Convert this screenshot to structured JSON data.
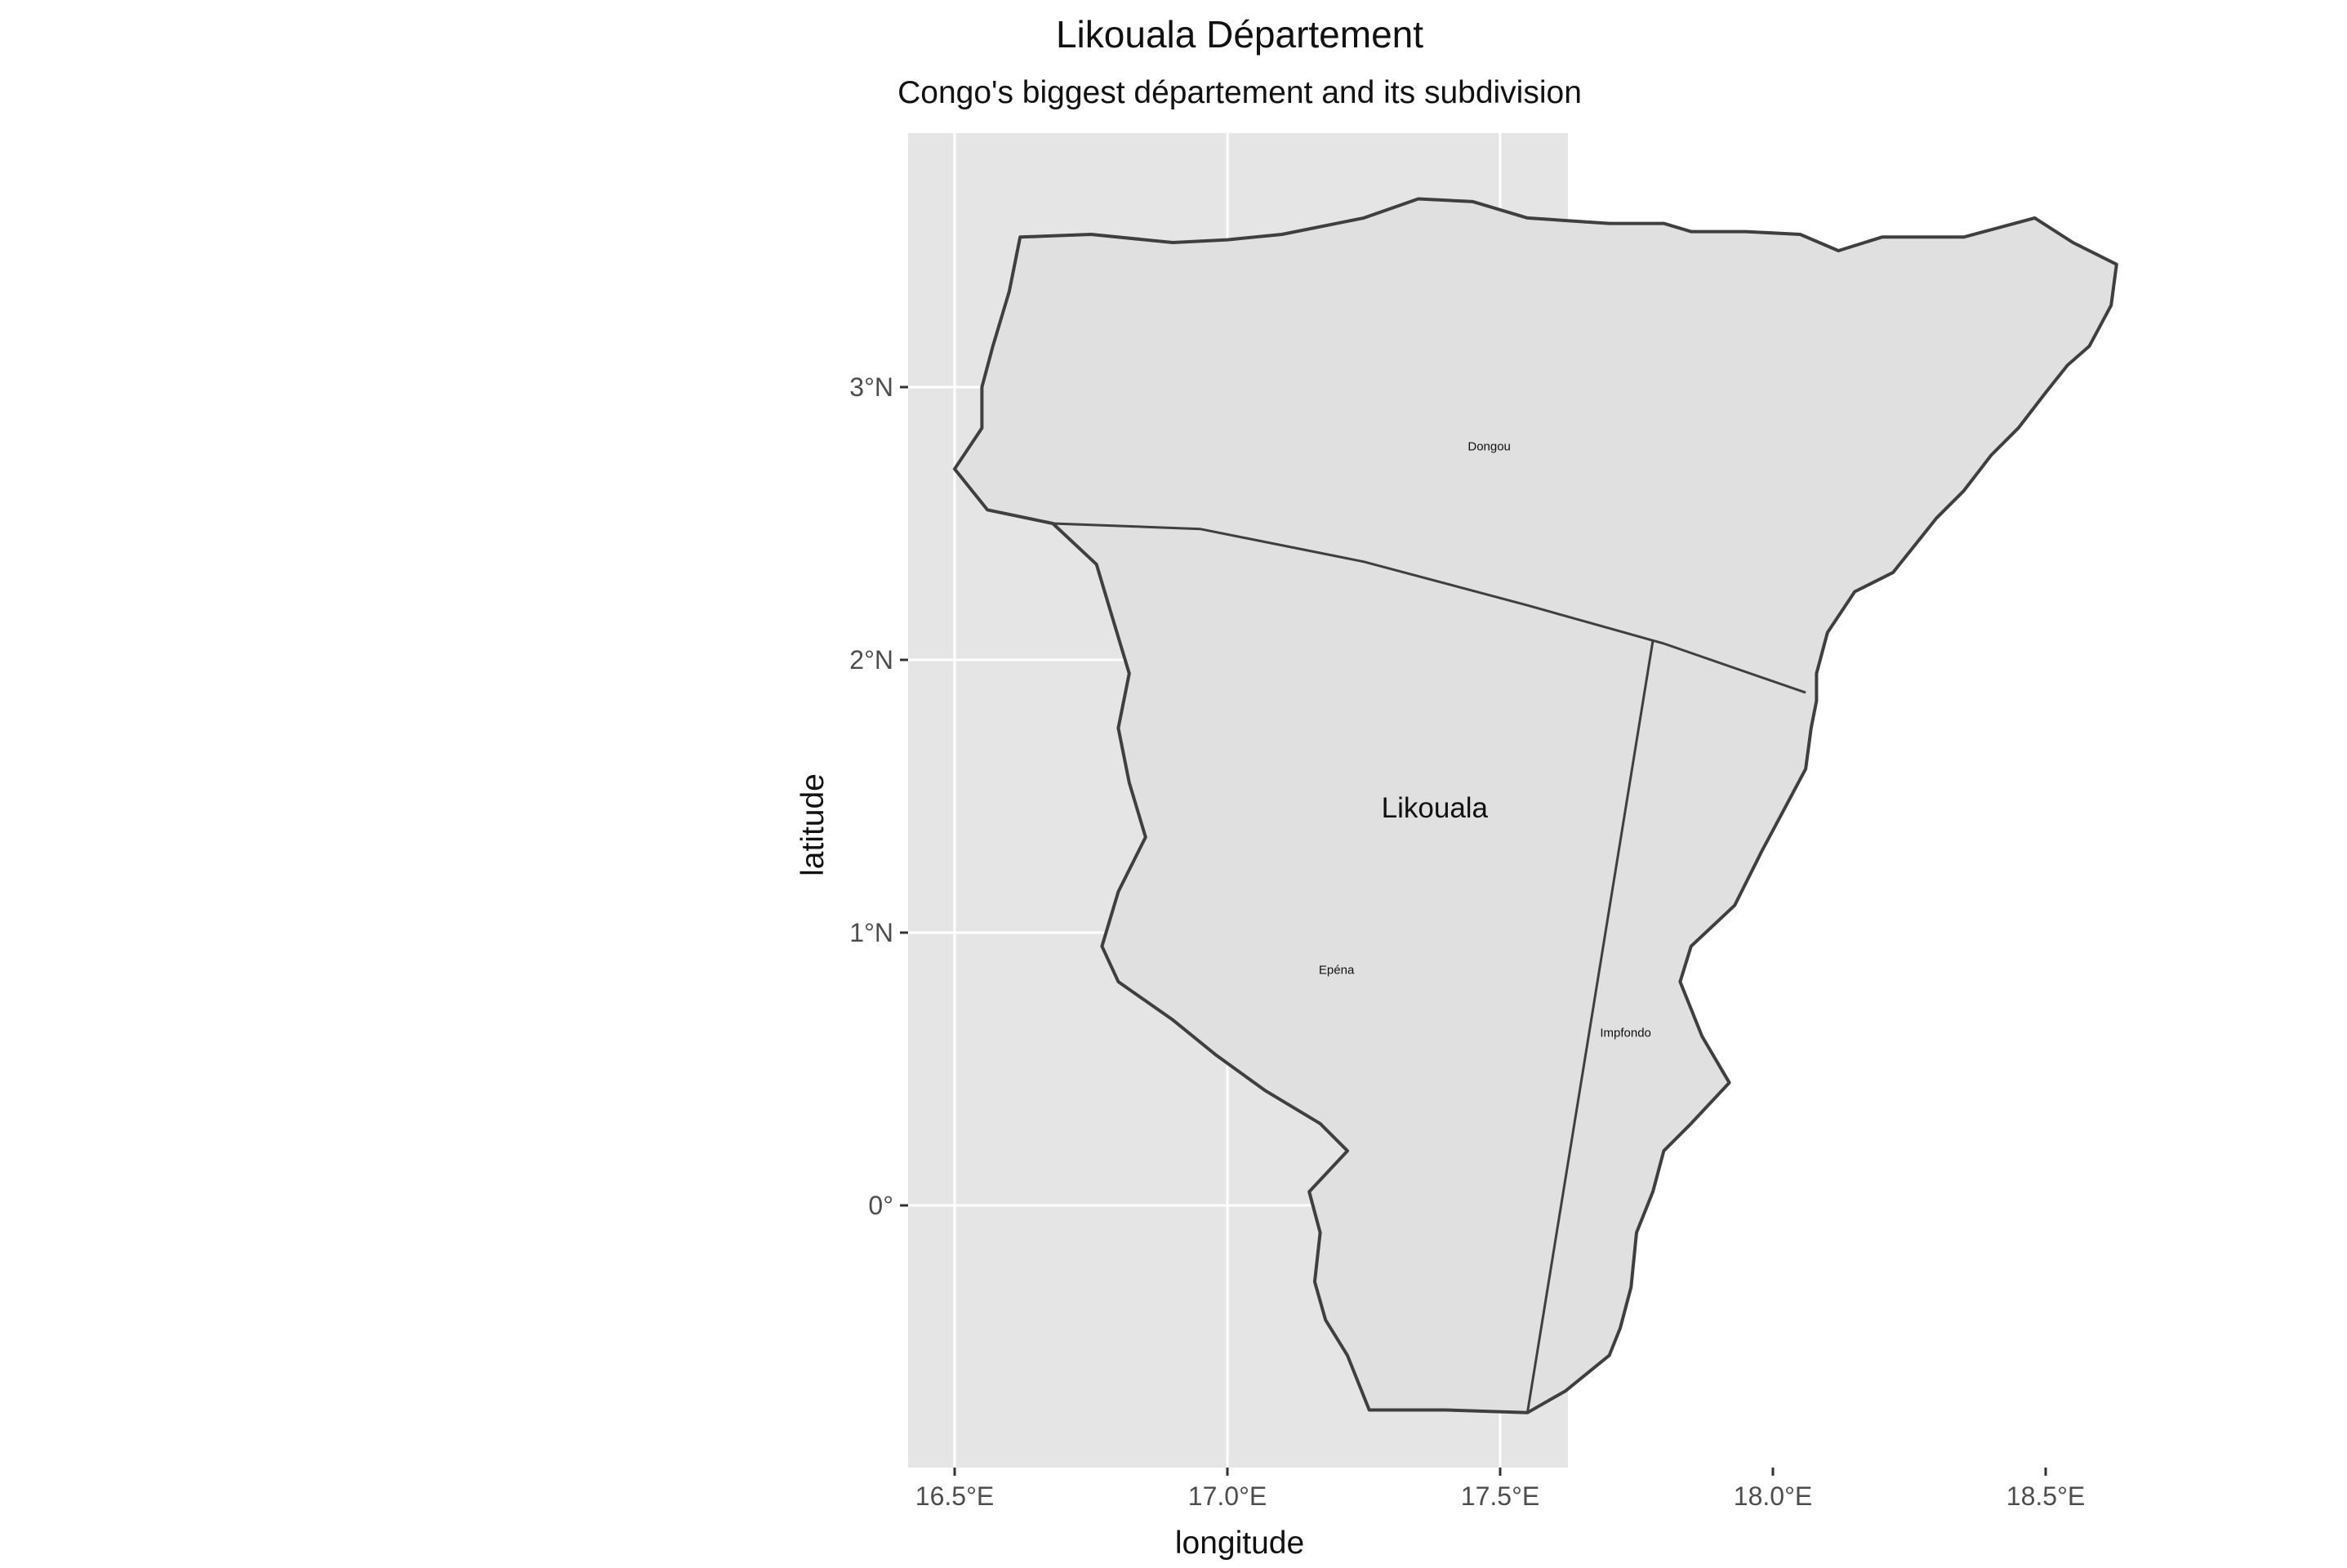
{
  "title": "Likouala Département",
  "subtitle": "Congo's biggest département and its subdivision",
  "axes": {
    "x_title": "longitude",
    "y_title": "latitude",
    "x_ticks": [
      "16.5°E",
      "17.0°E",
      "17.5°E",
      "18.0°E",
      "18.5°E"
    ],
    "y_ticks": [
      "3°N",
      "2°N",
      "1°N",
      "0°"
    ]
  },
  "labels": {
    "department": "Likouala",
    "districts": [
      "Dongou",
      "Epéna",
      "Impfondo"
    ]
  },
  "colors": {
    "panel_background": "#e5e5e5",
    "grid": "#ffffff",
    "region_fill": "#e0e0e0",
    "region_stroke": "#3f3f3f"
  },
  "chart_data": {
    "type": "map",
    "title": "Likouala Département",
    "subtitle": "Congo's biggest département and its subdivision",
    "xlabel": "longitude",
    "ylabel": "latitude",
    "xlim": [
      16.35,
      18.75
    ],
    "ylim": [
      -0.95,
      3.9
    ],
    "x_breaks": [
      16.5,
      17.0,
      17.5,
      18.0,
      18.5
    ],
    "y_breaks": [
      3,
      2,
      1,
      0
    ],
    "grid": true,
    "outline": [
      [
        16.62,
        3.55
      ],
      [
        16.75,
        3.56
      ],
      [
        16.9,
        3.53
      ],
      [
        17.0,
        3.54
      ],
      [
        17.1,
        3.56
      ],
      [
        17.25,
        3.62
      ],
      [
        17.35,
        3.69
      ],
      [
        17.45,
        3.68
      ],
      [
        17.55,
        3.62
      ],
      [
        17.7,
        3.6
      ],
      [
        17.8,
        3.6
      ],
      [
        17.85,
        3.57
      ],
      [
        17.95,
        3.57
      ],
      [
        18.05,
        3.56
      ],
      [
        18.12,
        3.5
      ],
      [
        18.2,
        3.55
      ],
      [
        18.35,
        3.55
      ],
      [
        18.48,
        3.62
      ],
      [
        18.55,
        3.53
      ],
      [
        18.63,
        3.45
      ],
      [
        18.62,
        3.3
      ],
      [
        18.58,
        3.15
      ],
      [
        18.54,
        3.08
      ],
      [
        18.5,
        2.98
      ],
      [
        18.45,
        2.85
      ],
      [
        18.4,
        2.75
      ],
      [
        18.35,
        2.62
      ],
      [
        18.3,
        2.52
      ],
      [
        18.26,
        2.42
      ],
      [
        18.22,
        2.32
      ],
      [
        18.15,
        2.25
      ],
      [
        18.1,
        2.1
      ],
      [
        18.08,
        1.95
      ],
      [
        18.08,
        1.85
      ],
      [
        18.07,
        1.75
      ],
      [
        18.06,
        1.6
      ],
      [
        18.02,
        1.45
      ],
      [
        17.98,
        1.3
      ],
      [
        17.93,
        1.1
      ],
      [
        17.85,
        0.95
      ],
      [
        17.83,
        0.82
      ],
      [
        17.87,
        0.62
      ],
      [
        17.92,
        0.45
      ],
      [
        17.85,
        0.3
      ],
      [
        17.8,
        0.2
      ],
      [
        17.78,
        0.05
      ],
      [
        17.75,
        -0.1
      ],
      [
        17.74,
        -0.3
      ],
      [
        17.72,
        -0.45
      ],
      [
        17.7,
        -0.55
      ],
      [
        17.62,
        -0.68
      ],
      [
        17.55,
        -0.76
      ],
      [
        17.4,
        -0.75
      ],
      [
        17.26,
        -0.75
      ],
      [
        17.22,
        -0.55
      ],
      [
        17.18,
        -0.42
      ],
      [
        17.16,
        -0.28
      ],
      [
        17.17,
        -0.1
      ],
      [
        17.15,
        0.05
      ],
      [
        17.22,
        0.2
      ],
      [
        17.17,
        0.3
      ],
      [
        17.07,
        0.42
      ],
      [
        16.98,
        0.55
      ],
      [
        16.9,
        0.68
      ],
      [
        16.8,
        0.82
      ],
      [
        16.77,
        0.95
      ],
      [
        16.8,
        1.15
      ],
      [
        16.85,
        1.35
      ],
      [
        16.82,
        1.55
      ],
      [
        16.8,
        1.75
      ],
      [
        16.82,
        1.95
      ],
      [
        16.79,
        2.15
      ],
      [
        16.76,
        2.35
      ],
      [
        16.68,
        2.5
      ],
      [
        16.56,
        2.55
      ],
      [
        16.5,
        2.7
      ],
      [
        16.55,
        2.85
      ],
      [
        16.55,
        3.0
      ],
      [
        16.57,
        3.15
      ],
      [
        16.6,
        3.35
      ],
      [
        16.62,
        3.55
      ]
    ],
    "divisions": [
      {
        "name": "Dongou–Epéna boundary",
        "line": [
          [
            16.68,
            2.5
          ],
          [
            16.95,
            2.48
          ],
          [
            17.25,
            2.36
          ],
          [
            17.55,
            2.2
          ],
          [
            17.8,
            2.06
          ],
          [
            18.06,
            1.88
          ]
        ]
      },
      {
        "name": "Epéna–Impfondo boundary",
        "line": [
          [
            17.78,
            2.07
          ],
          [
            17.55,
            -0.76
          ]
        ]
      }
    ],
    "region_labels": [
      {
        "text": "Likouala",
        "lon": 17.38,
        "lat": 1.45,
        "size": "large"
      },
      {
        "text": "Dongou",
        "lon": 17.48,
        "lat": 2.78,
        "size": "small"
      },
      {
        "text": "Epéna",
        "lon": 17.2,
        "lat": 0.86,
        "size": "small"
      },
      {
        "text": "Impfondo",
        "lon": 17.73,
        "lat": 0.63,
        "size": "small"
      }
    ]
  }
}
